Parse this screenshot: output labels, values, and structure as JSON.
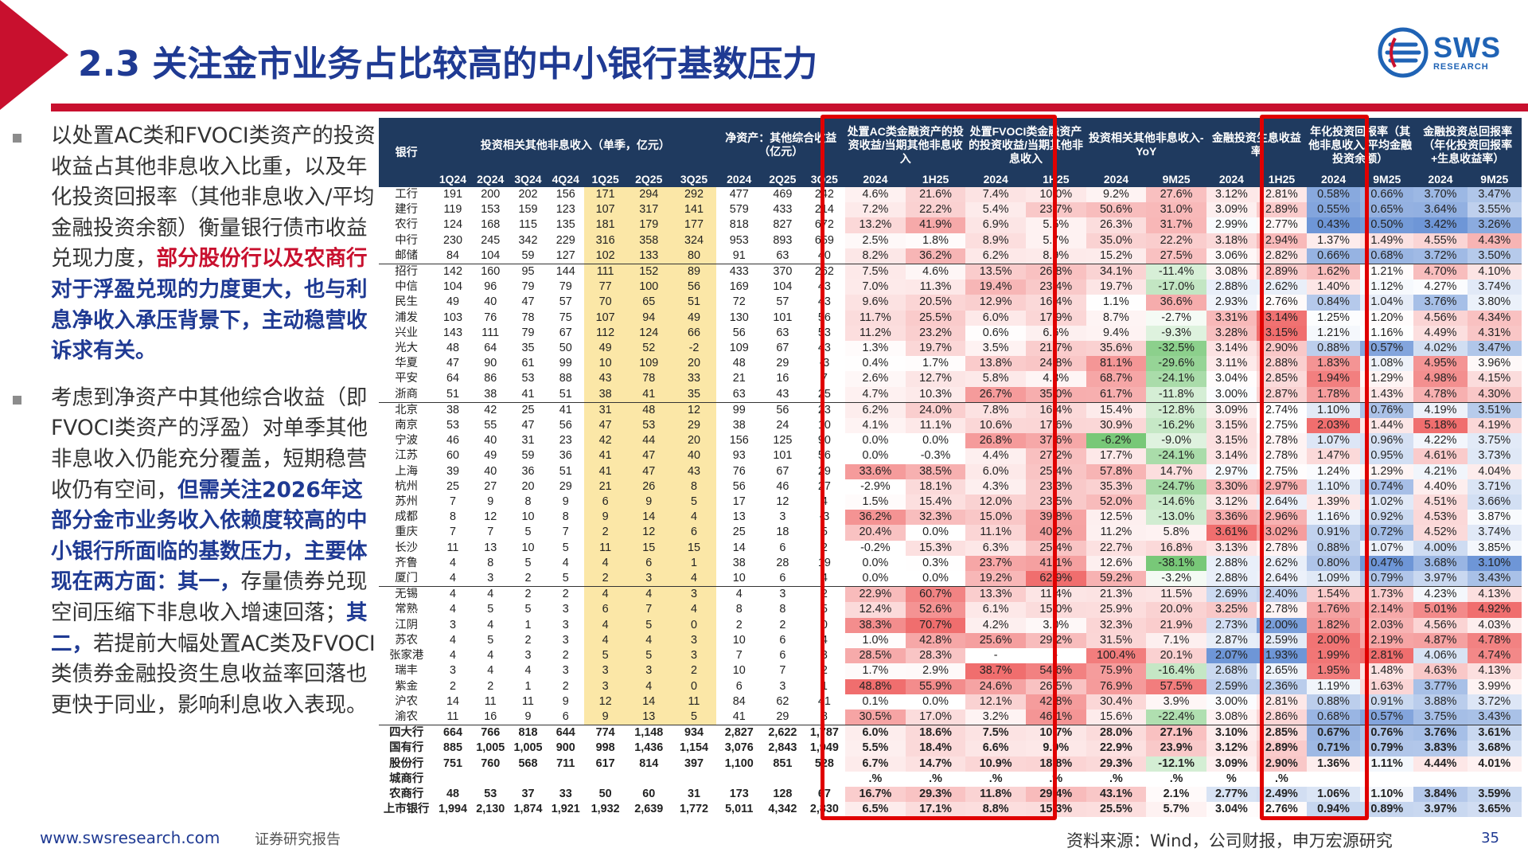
{
  "title": "2.3 关注金市业务占比较高的中小银行基数压力",
  "logo": {
    "main": "SWS",
    "sub": "RESEARCH"
  },
  "left_text": {
    "p1": [
      {
        "t": "以处置AC类和FVOCI类资产的投资收益占其他非息收入比重，以及年化投资回报率（其他非息收入/平均金融投资余额）衡量银行债市收益兑现力度，",
        "s": ""
      },
      {
        "t": "部分股份行以及农商行",
        "s": "hl"
      },
      {
        "t": "对于浮盈兑现的力度更大，也与利息净收入承压背景下，主动稳营收诉求有关。",
        "s": "hb"
      }
    ],
    "p2": [
      {
        "t": "考虑到净资产中其他综合收益（即FVOCI类资产的浮盈）对单季其他非息收入仍能充分覆盖，短期稳营收仍有空间，",
        "s": ""
      },
      {
        "t": "但需关注2026年这部分金市业务收入依赖度较高的中小银行所面临的基数压力，主要体现在两方面：其一，",
        "s": "hb"
      },
      {
        "t": "存量债券兑现空间压缩下非息收入增速回落；",
        "s": ""
      },
      {
        "t": "其二，",
        "s": "hb"
      },
      {
        "t": "若提前大幅处置AC类及FVOCI类债券金融投资生息收益率回落也更快于同业，影响利息收入表现。",
        "s": ""
      }
    ]
  },
  "table": {
    "header_groups": [
      {
        "label": "银行",
        "span": 1,
        "yellow": false
      },
      {
        "label": "投资相关其他非息收入（单季，亿元）",
        "span": 7,
        "yellow": false
      },
      {
        "label": "净资产：其他综合收益（亿元）",
        "span": 3,
        "yellow": true
      },
      {
        "label": "处置AC类金融资产的投资收益/当期其他非息收入",
        "span": 2,
        "yellow": true
      },
      {
        "label": "处置FVOCI类金融资产的投资收益/当期其他非息收入",
        "span": 2,
        "yellow": true
      },
      {
        "label": "投资相关其他非息收入-YoY",
        "span": 2,
        "yellow": false
      },
      {
        "label": "金融投资生息收益率",
        "span": 2,
        "yellow": false
      },
      {
        "label": "年化投资回报率（其他非息收入/平均金融投资余额）",
        "span": 2,
        "yellow": true
      },
      {
        "label": "金融投资总回报率（年化投资回报率+生息收益率）",
        "span": 2,
        "yellow": true
      }
    ],
    "subheaders": [
      "1Q24",
      "2Q24",
      "3Q24",
      "4Q24",
      "1Q25",
      "2Q25",
      "3Q25",
      "2024",
      "2Q25",
      "3Q25",
      "2024",
      "1H25",
      "2024",
      "1H25",
      "2024",
      "9M25",
      "2024",
      "1H25",
      "2024",
      "9M25",
      "2024",
      "9M25"
    ],
    "rows": [
      [
        "工行",
        "191",
        "200",
        "202",
        "156",
        "171",
        "294",
        "292",
        "477",
        "469",
        "242",
        "4.6%",
        "21.6%",
        "7.4%",
        "10.0%",
        "9.2%",
        "27.6%",
        "3.12%",
        "2.81%",
        "0.58%",
        "0.66%",
        "3.70%",
        "3.47%"
      ],
      [
        "建行",
        "119",
        "153",
        "159",
        "123",
        "107",
        "317",
        "141",
        "579",
        "433",
        "214",
        "7.2%",
        "22.2%",
        "5.4%",
        "23.7%",
        "50.6%",
        "31.0%",
        "3.09%",
        "2.89%",
        "0.55%",
        "0.65%",
        "3.64%",
        "3.55%"
      ],
      [
        "农行",
        "124",
        "168",
        "115",
        "135",
        "181",
        "179",
        "177",
        "818",
        "827",
        "672",
        "13.2%",
        "41.9%",
        "6.9%",
        "5.5%",
        "26.3%",
        "31.7%",
        "2.99%",
        "2.77%",
        "0.43%",
        "0.50%",
        "3.42%",
        "3.26%"
      ],
      [
        "中行",
        "230",
        "245",
        "342",
        "229",
        "316",
        "358",
        "324",
        "953",
        "893",
        "659",
        "2.5%",
        "1.8%",
        "8.9%",
        "5.7%",
        "35.0%",
        "22.2%",
        "3.18%",
        "2.94%",
        "1.37%",
        "1.49%",
        "4.55%",
        "4.43%"
      ],
      [
        "邮储",
        "84",
        "104",
        "59",
        "127",
        "102",
        "133",
        "80",
        "91",
        "63",
        "40",
        "8.2%",
        "36.2%",
        "6.2%",
        "8.9%",
        "15.2%",
        "27.5%",
        "3.06%",
        "2.82%",
        "0.66%",
        "0.68%",
        "3.72%",
        "3.50%"
      ],
      [
        "招行",
        "142",
        "160",
        "95",
        "144",
        "111",
        "152",
        "89",
        "433",
        "370",
        "262",
        "7.5%",
        "4.6%",
        "13.5%",
        "26.8%",
        "34.1%",
        "-11.4%",
        "3.08%",
        "2.89%",
        "1.62%",
        "1.21%",
        "4.70%",
        "4.10%"
      ],
      [
        "中信",
        "104",
        "96",
        "79",
        "79",
        "77",
        "100",
        "56",
        "169",
        "104",
        "43",
        "7.0%",
        "11.3%",
        "19.4%",
        "23.4%",
        "19.7%",
        "-17.0%",
        "2.88%",
        "2.62%",
        "1.40%",
        "1.12%",
        "4.27%",
        "3.74%"
      ],
      [
        "民生",
        "49",
        "40",
        "47",
        "57",
        "70",
        "65",
        "51",
        "72",
        "57",
        "43",
        "9.6%",
        "20.5%",
        "12.9%",
        "16.4%",
        "1.1%",
        "36.6%",
        "2.93%",
        "2.76%",
        "0.84%",
        "1.04%",
        "3.76%",
        "3.80%"
      ],
      [
        "浦发",
        "103",
        "76",
        "78",
        "75",
        "107",
        "94",
        "49",
        "130",
        "101",
        "56",
        "11.7%",
        "25.5%",
        "6.0%",
        "17.9%",
        "8.7%",
        "-2.7%",
        "3.31%",
        "3.14%",
        "1.25%",
        "1.20%",
        "4.56%",
        "4.34%"
      ],
      [
        "兴业",
        "143",
        "111",
        "79",
        "67",
        "112",
        "124",
        "66",
        "56",
        "63",
        "53",
        "11.2%",
        "23.2%",
        "0.6%",
        "6.6%",
        "9.4%",
        "-9.3%",
        "3.28%",
        "3.15%",
        "1.21%",
        "1.16%",
        "4.49%",
        "4.31%"
      ],
      [
        "光大",
        "48",
        "64",
        "35",
        "50",
        "49",
        "52",
        "-2",
        "109",
        "67",
        "43",
        "1.3%",
        "19.7%",
        "3.5%",
        "21.7%",
        "35.6%",
        "-32.5%",
        "3.14%",
        "2.90%",
        "0.88%",
        "0.57%",
        "4.02%",
        "3.47%"
      ],
      [
        "华夏",
        "47",
        "90",
        "61",
        "99",
        "10",
        "109",
        "20",
        "48",
        "29",
        "-3",
        "0.4%",
        "1.7%",
        "13.8%",
        "24.8%",
        "81.1%",
        "-29.6%",
        "3.11%",
        "2.88%",
        "1.83%",
        "1.08%",
        "4.95%",
        "3.96%"
      ],
      [
        "平安",
        "64",
        "86",
        "53",
        "88",
        "43",
        "78",
        "33",
        "21",
        "16",
        "7",
        "2.6%",
        "12.7%",
        "5.8%",
        "4.3%",
        "68.7%",
        "-24.1%",
        "3.04%",
        "2.85%",
        "1.94%",
        "1.29%",
        "4.98%",
        "4.15%"
      ],
      [
        "浙商",
        "51",
        "38",
        "41",
        "51",
        "38",
        "41",
        "35",
        "63",
        "43",
        "25",
        "4.7%",
        "10.3%",
        "26.7%",
        "35.0%",
        "61.7%",
        "-11.8%",
        "3.00%",
        "2.87%",
        "1.78%",
        "1.43%",
        "4.78%",
        "4.30%"
      ],
      [
        "北京",
        "38",
        "42",
        "25",
        "41",
        "31",
        "48",
        "12",
        "99",
        "56",
        "23",
        "6.2%",
        "24.0%",
        "7.8%",
        "16.4%",
        "15.4%",
        "-12.8%",
        "3.09%",
        "2.74%",
        "1.10%",
        "0.76%",
        "4.19%",
        "3.51%"
      ],
      [
        "南京",
        "53",
        "55",
        "47",
        "56",
        "47",
        "53",
        "29",
        "38",
        "24",
        "10",
        "4.1%",
        "11.1%",
        "10.6%",
        "17.6%",
        "30.9%",
        "-16.2%",
        "3.15%",
        "2.75%",
        "2.03%",
        "1.44%",
        "5.18%",
        "4.19%"
      ],
      [
        "宁波",
        "46",
        "40",
        "31",
        "23",
        "42",
        "44",
        "20",
        "156",
        "125",
        "90",
        "0.0%",
        "0.0%",
        "26.8%",
        "37.6%",
        "-6.2%",
        "-9.0%",
        "3.15%",
        "2.78%",
        "1.07%",
        "0.96%",
        "4.22%",
        "3.75%"
      ],
      [
        "江苏",
        "60",
        "49",
        "59",
        "36",
        "41",
        "47",
        "40",
        "93",
        "101",
        "56",
        "0.0%",
        "-0.3%",
        "4.4%",
        "27.2%",
        "17.7%",
        "-24.1%",
        "3.14%",
        "2.78%",
        "1.47%",
        "0.95%",
        "4.61%",
        "3.73%"
      ],
      [
        "上海",
        "39",
        "40",
        "36",
        "51",
        "41",
        "47",
        "43",
        "76",
        "67",
        "29",
        "33.6%",
        "38.5%",
        "6.0%",
        "25.4%",
        "57.8%",
        "14.7%",
        "2.97%",
        "2.75%",
        "1.24%",
        "1.29%",
        "4.21%",
        "4.04%"
      ],
      [
        "杭州",
        "25",
        "27",
        "20",
        "29",
        "21",
        "26",
        "8",
        "56",
        "46",
        "27",
        "-2.9%",
        "18.1%",
        "4.3%",
        "23.3%",
        "35.3%",
        "-24.7%",
        "3.30%",
        "2.97%",
        "1.10%",
        "0.74%",
        "4.40%",
        "3.71%"
      ],
      [
        "苏州",
        "7",
        "9",
        "8",
        "9",
        "6",
        "9",
        "5",
        "17",
        "12",
        "4",
        "1.5%",
        "15.4%",
        "12.0%",
        "23.5%",
        "52.0%",
        "-14.6%",
        "3.12%",
        "2.64%",
        "1.39%",
        "1.02%",
        "4.51%",
        "3.66%"
      ],
      [
        "成都",
        "8",
        "12",
        "10",
        "8",
        "9",
        "14",
        "4",
        "13",
        "3",
        "-3",
        "36.2%",
        "32.3%",
        "15.0%",
        "39.8%",
        "12.5%",
        "-13.0%",
        "3.36%",
        "2.96%",
        "1.16%",
        "0.92%",
        "4.53%",
        "3.87%"
      ],
      [
        "重庆",
        "7",
        "7",
        "5",
        "7",
        "2",
        "12",
        "6",
        "25",
        "18",
        "5",
        "20.4%",
        "0.0%",
        "11.1%",
        "40.2%",
        "11.2%",
        "5.8%",
        "3.61%",
        "3.02%",
        "0.91%",
        "0.72%",
        "4.52%",
        "3.74%"
      ],
      [
        "长沙",
        "11",
        "13",
        "10",
        "5",
        "11",
        "15",
        "15",
        "14",
        "6",
        "2",
        "-0.2%",
        "15.3%",
        "6.3%",
        "25.4%",
        "22.7%",
        "16.8%",
        "3.13%",
        "2.78%",
        "0.88%",
        "1.07%",
        "4.00%",
        "3.85%"
      ],
      [
        "齐鲁",
        "4",
        "8",
        "5",
        "4",
        "4",
        "6",
        "1",
        "38",
        "28",
        "19",
        "0.0%",
        "0.3%",
        "23.7%",
        "41.1%",
        "12.6%",
        "-38.1%",
        "2.88%",
        "2.62%",
        "0.80%",
        "0.47%",
        "3.68%",
        "3.10%"
      ],
      [
        "厦门",
        "4",
        "3",
        "2",
        "5",
        "2",
        "3",
        "4",
        "10",
        "6",
        "4",
        "0.0%",
        "0.0%",
        "19.2%",
        "62.9%",
        "59.2%",
        "-3.2%",
        "2.88%",
        "2.64%",
        "1.09%",
        "0.79%",
        "3.97%",
        "3.43%"
      ],
      [
        "无锡",
        "4",
        "4",
        "2",
        "2",
        "4",
        "4",
        "3",
        "4",
        "3",
        "2",
        "22.9%",
        "60.7%",
        "13.3%",
        "11.4%",
        "21.3%",
        "11.5%",
        "2.69%",
        "2.40%",
        "1.54%",
        "1.73%",
        "4.23%",
        "4.13%"
      ],
      [
        "常熟",
        "4",
        "5",
        "5",
        "3",
        "6",
        "7",
        "4",
        "8",
        "8",
        "5",
        "12.4%",
        "52.6%",
        "6.1%",
        "15.0%",
        "25.9%",
        "20.0%",
        "3.25%",
        "2.78%",
        "1.76%",
        "2.14%",
        "5.01%",
        "4.92%"
      ],
      [
        "江阴",
        "3",
        "4",
        "1",
        "3",
        "4",
        "5",
        "0",
        "2",
        "2",
        "0",
        "38.3%",
        "70.7%",
        "4.2%",
        "3.0%",
        "32.3%",
        "21.9%",
        "2.73%",
        "2.00%",
        "1.82%",
        "2.03%",
        "4.56%",
        "4.03%"
      ],
      [
        "苏农",
        "4",
        "5",
        "2",
        "3",
        "4",
        "4",
        "3",
        "10",
        "6",
        "4",
        "1.0%",
        "42.8%",
        "25.6%",
        "29.2%",
        "31.5%",
        "7.1%",
        "2.87%",
        "2.59%",
        "2.00%",
        "2.19%",
        "4.87%",
        "4.78%"
      ],
      [
        "张家港",
        "4",
        "4",
        "3",
        "2",
        "5",
        "5",
        "3",
        "7",
        "6",
        "3",
        "28.5%",
        "28.3%",
        "-",
        "-",
        "100.4%",
        "20.1%",
        "2.07%",
        "1.93%",
        "1.99%",
        "2.81%",
        "4.06%",
        "4.74%"
      ],
      [
        "瑞丰",
        "3",
        "4",
        "4",
        "3",
        "3",
        "3",
        "2",
        "10",
        "7",
        "2",
        "1.7%",
        "2.9%",
        "38.7%",
        "54.6%",
        "75.9%",
        "-16.4%",
        "2.68%",
        "2.65%",
        "1.95%",
        "1.48%",
        "4.63%",
        "4.13%"
      ],
      [
        "紫金",
        "2",
        "2",
        "1",
        "2",
        "3",
        "4",
        "0",
        "6",
        "3",
        "1",
        "48.8%",
        "55.9%",
        "24.6%",
        "26.5%",
        "76.9%",
        "57.5%",
        "2.59%",
        "2.36%",
        "1.19%",
        "1.63%",
        "3.77%",
        "3.99%"
      ],
      [
        "沪农",
        "14",
        "11",
        "11",
        "9",
        "12",
        "14",
        "11",
        "84",
        "62",
        "41",
        "0.1%",
        "0.0%",
        "12.1%",
        "42.8%",
        "30.4%",
        "3.9%",
        "3.00%",
        "2.81%",
        "0.88%",
        "0.91%",
        "3.88%",
        "3.72%"
      ],
      [
        "渝农",
        "11",
        "16",
        "9",
        "6",
        "9",
        "13",
        "5",
        "41",
        "29",
        "8",
        "30.5%",
        "17.0%",
        "3.2%",
        "46.1%",
        "15.6%",
        "-22.4%",
        "3.08%",
        "2.86%",
        "0.68%",
        "0.57%",
        "3.75%",
        "3.43%"
      ],
      [
        "四大行",
        "664",
        "766",
        "818",
        "644",
        "774",
        "1,148",
        "934",
        "2,827",
        "2,622",
        "1,787",
        "6.0%",
        "18.6%",
        "7.5%",
        "10.7%",
        "28.0%",
        "27.1%",
        "3.10%",
        "2.85%",
        "0.67%",
        "0.76%",
        "3.76%",
        "3.61%"
      ],
      [
        "国有行",
        "885",
        "1,005",
        "1,005",
        "900",
        "998",
        "1,436",
        "1,154",
        "3,076",
        "2,843",
        "1,949",
        "5.5%",
        "18.4%",
        "6.6%",
        "9.9%",
        "22.9%",
        "23.9%",
        "3.12%",
        "2.89%",
        "0.71%",
        "0.79%",
        "3.83%",
        "3.68%"
      ],
      [
        "股份行",
        "751",
        "760",
        "568",
        "711",
        "617",
        "814",
        "397",
        "1,100",
        "851",
        "528",
        "6.7%",
        "14.7%",
        "10.9%",
        "18.8%",
        "29.3%",
        "-12.1%",
        "3.09%",
        "2.90%",
        "1.36%",
        "1.11%",
        "4.44%",
        "4.01%"
      ],
      [
        "城商行",
        "",
        "",
        "",
        "",
        "",
        "",
        "",
        "",
        "",
        "",
        ".%",
        ".%",
        ".%",
        ".%",
        ".%",
        ".%",
        "%",
        ".%",
        "",
        "",
        "",
        ""
      ],
      [
        "农商行",
        "48",
        "53",
        "37",
        "33",
        "50",
        "60",
        "31",
        "173",
        "128",
        "67",
        "16.7%",
        "29.3%",
        "11.8%",
        "29.4%",
        "43.1%",
        "2.1%",
        "2.77%",
        "2.49%",
        "1.06%",
        "1.10%",
        "3.84%",
        "3.59%"
      ],
      [
        "上市银行",
        "1,994",
        "2,130",
        "1,874",
        "1,921",
        "1,932",
        "2,639",
        "1,772",
        "5,011",
        "4,342",
        "2,830",
        "6.5%",
        "17.1%",
        "8.8%",
        "15.3%",
        "25.5%",
        "5.7%",
        "3.04%",
        "2.76%",
        "0.94%",
        "0.89%",
        "3.97%",
        "3.65%"
      ]
    ]
  },
  "footer": {
    "url": "www.swsresearch.com",
    "tag": "证券研究报告",
    "source": "资料来源：Wind，公司财报，申万宏源研究",
    "page": "35"
  },
  "colors": {
    "accent_red": "#c8102e",
    "title_blue": "#1f3a93",
    "header_bg": "#1f3a5f",
    "header_yellow": "#f0d040",
    "box_red": "#e00000"
  }
}
